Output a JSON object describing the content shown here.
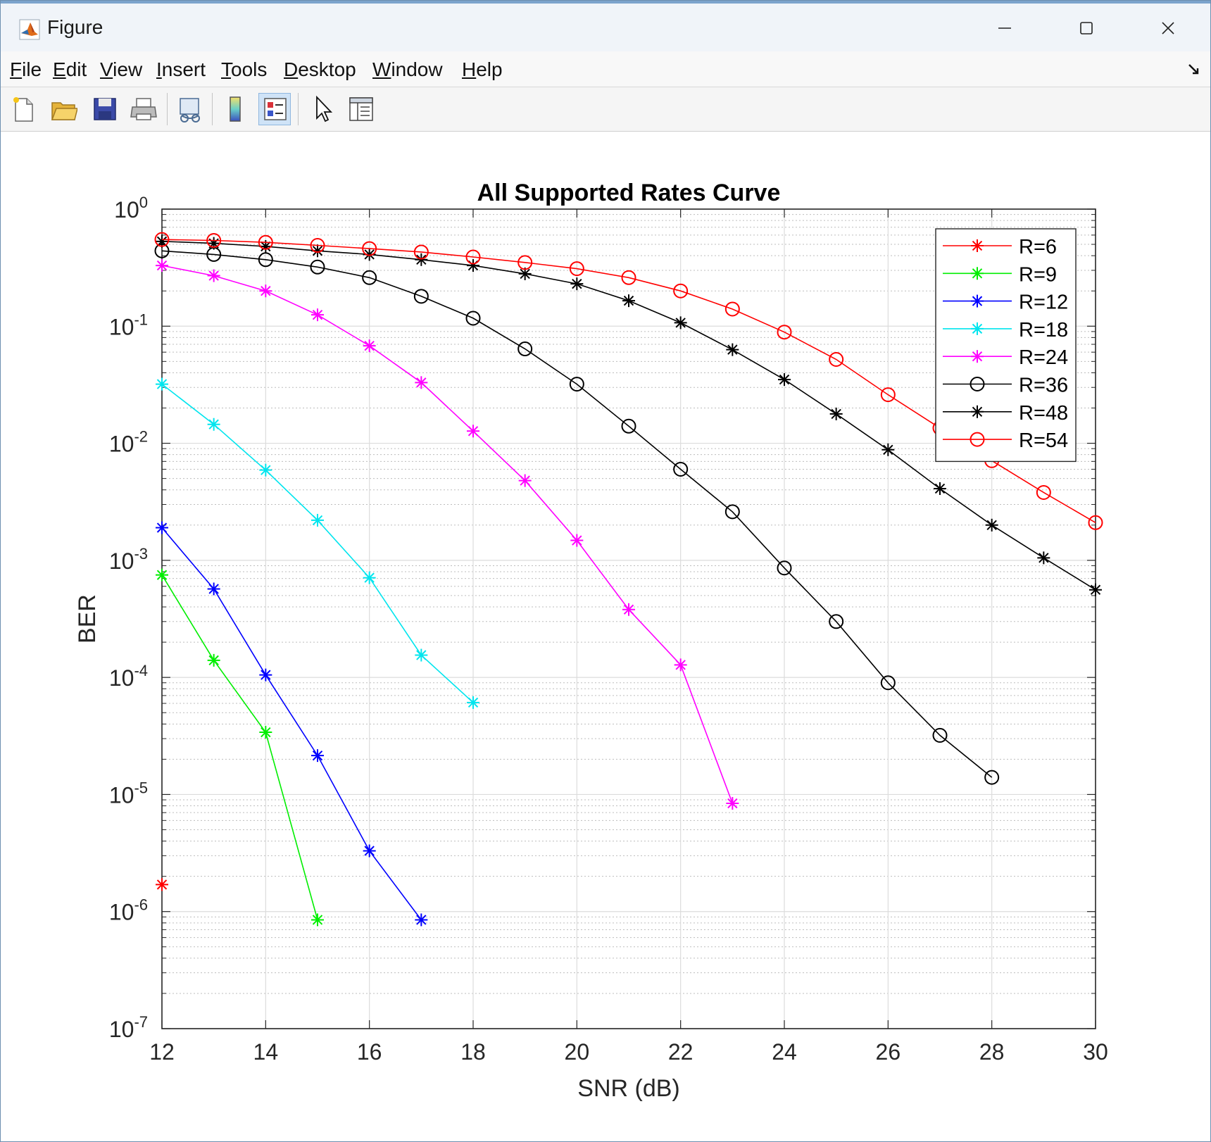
{
  "window": {
    "title": "Figure"
  },
  "menu": [
    {
      "label": "File",
      "u": "F"
    },
    {
      "label": "Edit",
      "u": "E"
    },
    {
      "label": "View",
      "u": "V"
    },
    {
      "label": "Insert",
      "u": "I"
    },
    {
      "label": "Tools",
      "u": "T"
    },
    {
      "label": "Desktop",
      "u": "D"
    },
    {
      "label": "Window",
      "u": "W"
    },
    {
      "label": "Help",
      "u": "H"
    }
  ],
  "toolbar": {
    "icons": [
      "new-figure-icon",
      "open-file-icon",
      "save-figure-icon",
      "print-figure-icon",
      "link-plot-icon",
      "insert-colorbar-icon",
      "insert-legend-icon",
      "edit-plot-icon",
      "property-inspector-icon"
    ],
    "active": "insert-legend-icon"
  },
  "chart_data": {
    "type": "line",
    "title": "All Supported Rates Curve",
    "xlabel": "SNR (dB)",
    "ylabel": "BER",
    "xlim": [
      12,
      30
    ],
    "ylim": [
      1e-07,
      1
    ],
    "yscale": "log",
    "xticks": [
      12,
      14,
      16,
      18,
      20,
      22,
      24,
      26,
      28,
      30
    ],
    "yticks": [
      {
        "base": "10",
        "exp": "0"
      },
      {
        "base": "10",
        "exp": "-1"
      },
      {
        "base": "10",
        "exp": "-2"
      },
      {
        "base": "10",
        "exp": "-3"
      },
      {
        "base": "10",
        "exp": "-4"
      },
      {
        "base": "10",
        "exp": "-5"
      },
      {
        "base": "10",
        "exp": "-6"
      },
      {
        "base": "10",
        "exp": "-7"
      }
    ],
    "grid": true,
    "legend_position": "top-right",
    "series": [
      {
        "name": "R=6",
        "color": "#ff0000",
        "marker": "star",
        "x": [
          12
        ],
        "y": [
          1.7e-06
        ]
      },
      {
        "name": "R=9",
        "color": "#00ee00",
        "marker": "star",
        "x": [
          12,
          13,
          14,
          15
        ],
        "y": [
          0.00075,
          0.00014,
          3.4e-05,
          8.5e-07
        ]
      },
      {
        "name": "R=12",
        "color": "#0000ff",
        "marker": "star",
        "x": [
          12,
          13,
          14,
          15,
          16,
          17
        ],
        "y": [
          0.0019,
          0.00057,
          0.000105,
          2.15e-05,
          3.3e-06,
          8.5e-07
        ]
      },
      {
        "name": "R=18",
        "color": "#00e5ee",
        "marker": "star",
        "x": [
          12,
          13,
          14,
          15,
          16,
          17,
          18
        ],
        "y": [
          0.032,
          0.0145,
          0.0059,
          0.0022,
          0.00071,
          0.000155,
          6.1e-05
        ]
      },
      {
        "name": "R=24",
        "color": "#ff00ff",
        "marker": "star",
        "x": [
          12,
          13,
          14,
          15,
          16,
          17,
          18,
          19,
          20,
          21,
          22,
          23
        ],
        "y": [
          0.33,
          0.27,
          0.2,
          0.125,
          0.068,
          0.033,
          0.0127,
          0.0048,
          0.00148,
          0.00038,
          0.000128,
          8.4e-06
        ]
      },
      {
        "name": "R=36",
        "color": "#000000",
        "marker": "circle",
        "x": [
          12,
          13,
          14,
          15,
          16,
          17,
          18,
          19,
          20,
          21,
          22,
          23,
          24,
          25,
          26,
          27,
          28
        ],
        "y": [
          0.44,
          0.41,
          0.37,
          0.32,
          0.26,
          0.18,
          0.117,
          0.064,
          0.032,
          0.014,
          0.006,
          0.0026,
          0.00086,
          0.0003,
          9e-05,
          3.2e-05,
          1.4e-05
        ]
      },
      {
        "name": "R=48",
        "color": "#000000",
        "marker": "star",
        "x": [
          12,
          13,
          14,
          15,
          16,
          17,
          18,
          19,
          20,
          21,
          22,
          23,
          24,
          25,
          26,
          27,
          28,
          29,
          30
        ],
        "y": [
          0.53,
          0.51,
          0.48,
          0.44,
          0.41,
          0.37,
          0.33,
          0.28,
          0.23,
          0.165,
          0.107,
          0.063,
          0.035,
          0.0178,
          0.0088,
          0.0041,
          0.002,
          0.00105,
          0.00056
        ]
      },
      {
        "name": "R=54",
        "color": "#ff0000",
        "marker": "circle",
        "x": [
          12,
          13,
          14,
          15,
          16,
          17,
          18,
          19,
          20,
          21,
          22,
          23,
          24,
          25,
          26,
          27,
          28,
          29,
          30
        ],
        "y": [
          0.55,
          0.54,
          0.52,
          0.49,
          0.46,
          0.43,
          0.39,
          0.35,
          0.31,
          0.26,
          0.2,
          0.14,
          0.089,
          0.052,
          0.026,
          0.0135,
          0.0071,
          0.0038,
          0.0021
        ]
      }
    ]
  }
}
